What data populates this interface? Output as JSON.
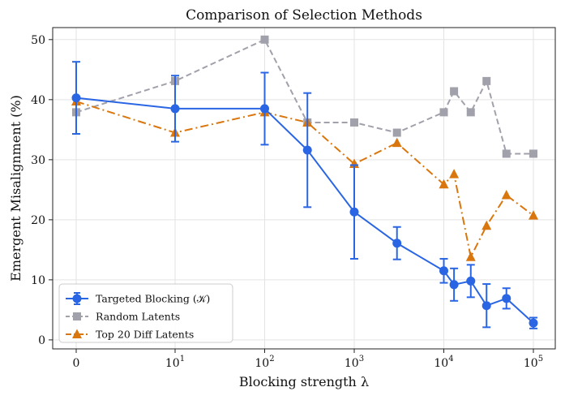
{
  "chart_data": {
    "type": "line",
    "title": "Comparison of Selection Methods",
    "xlabel": "Blocking strength λ",
    "ylabel": "Emergent Misalignment (%)",
    "x_scale": "symlog",
    "x_ticks": [
      {
        "value": 0,
        "label": "0"
      },
      {
        "value": 10,
        "base": "10",
        "exp": "1"
      },
      {
        "value": 100,
        "base": "10",
        "exp": "2"
      },
      {
        "value": 1000,
        "base": "10",
        "exp": "3"
      },
      {
        "value": 10000,
        "base": "10",
        "exp": "4"
      },
      {
        "value": 100000,
        "base": "10",
        "exp": "5"
      }
    ],
    "y_ticks": [
      0,
      10,
      20,
      30,
      40,
      50
    ],
    "ylim": [
      -1.5,
      52
    ],
    "grid": true,
    "legend_position": "lower-left",
    "series": [
      {
        "name": "Targeted Blocking (𝒦)",
        "color": "#2a66e4",
        "marker": "circle",
        "linestyle": "solid",
        "x": [
          0,
          10,
          100,
          300,
          1000,
          3000,
          10000,
          13000,
          20000,
          30000,
          50000,
          100000
        ],
        "y": [
          40.3,
          38.5,
          38.5,
          31.6,
          21.3,
          16.1,
          11.5,
          9.2,
          9.8,
          5.7,
          6.9,
          2.8
        ],
        "err": [
          6.0,
          5.5,
          6.0,
          9.5,
          7.8,
          2.7,
          2.0,
          2.7,
          2.7,
          3.6,
          1.7,
          0.9
        ]
      },
      {
        "name": "Random Latents",
        "color": "#a1a1ab",
        "marker": "square",
        "linestyle": "dashed",
        "x": [
          0,
          10,
          100,
          300,
          1000,
          3000,
          10000,
          13000,
          20000,
          30000,
          50000,
          100000
        ],
        "y": [
          37.9,
          43.1,
          50.0,
          36.2,
          36.2,
          34.5,
          37.9,
          41.4,
          37.9,
          43.1,
          31.0,
          31.0
        ]
      },
      {
        "name": "Top 20 Diff Latents",
        "color": "#d9770e",
        "marker": "triangle",
        "linestyle": "dashdot",
        "x": [
          0,
          10,
          100,
          300,
          1000,
          3000,
          10000,
          13000,
          20000,
          30000,
          50000,
          100000
        ],
        "y": [
          39.7,
          34.5,
          37.9,
          36.2,
          29.3,
          32.8,
          25.9,
          27.6,
          13.8,
          19.0,
          24.1,
          20.7
        ]
      }
    ]
  }
}
